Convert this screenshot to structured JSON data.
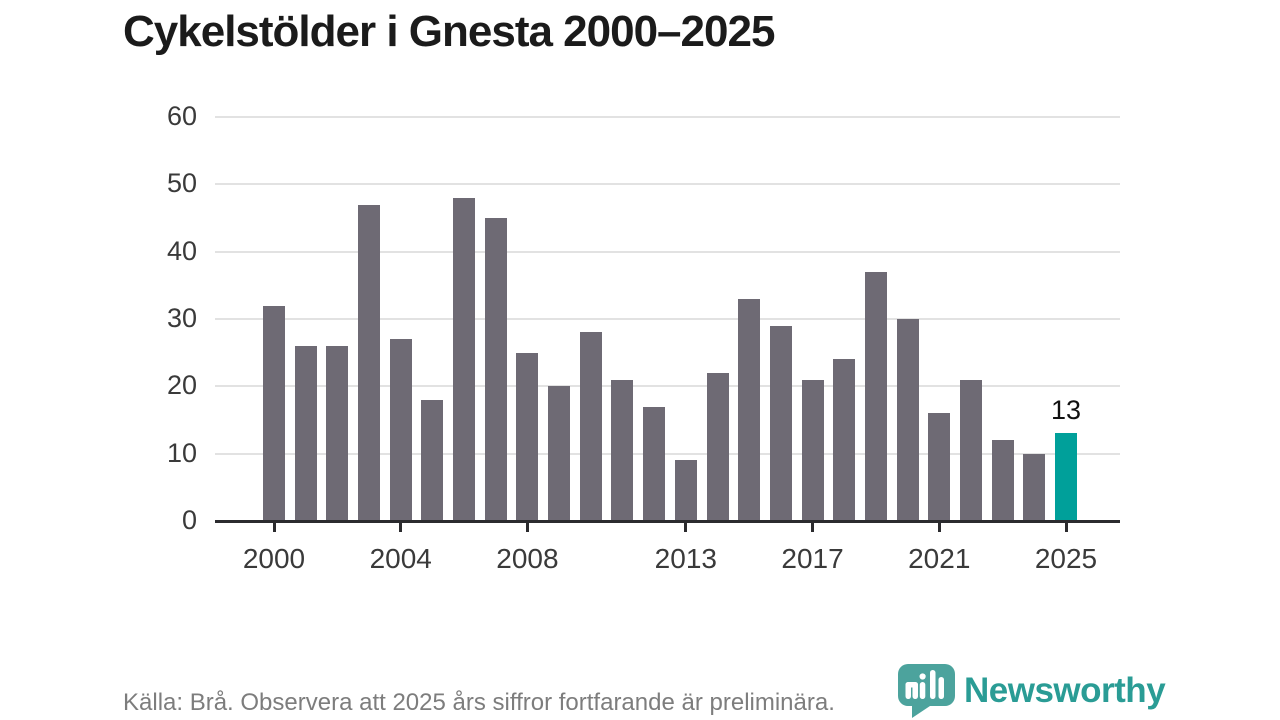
{
  "title": "Cykelstölder i Gnesta 2000–2025",
  "footer": {
    "source_note": "Källa: Brå. Observera att 2025 års siffror fortfarande är preliminära."
  },
  "logo": {
    "wordmark": "Newsworthy"
  },
  "colors": {
    "bar": "#6e6a74",
    "highlight_bar": "#00a09a",
    "logo_icon": "#3f9d96",
    "logo_text": "#2a9c95",
    "gridline": "#e2e2e2",
    "axis": "#2b2b2e",
    "axis_label": "#3a3a3a",
    "title_text": "#1b1b1b",
    "footer_text": "#7d7d7d",
    "bar_label": "#111111"
  },
  "chart_data": {
    "type": "bar",
    "title": "Cykelstölder i Gnesta 2000–2025",
    "x": [
      2000,
      2001,
      2002,
      2003,
      2004,
      2005,
      2006,
      2007,
      2008,
      2009,
      2010,
      2011,
      2012,
      2013,
      2014,
      2015,
      2016,
      2017,
      2018,
      2019,
      2020,
      2021,
      2022,
      2023,
      2024,
      2025
    ],
    "values": [
      32,
      26,
      26,
      47,
      27,
      18,
      48,
      45,
      25,
      20,
      28,
      21,
      17,
      9,
      22,
      33,
      29,
      21,
      24,
      37,
      30,
      16,
      21,
      12,
      10,
      13
    ],
    "highlight_index": 25,
    "highlight_label": "13",
    "xtick_labels": [
      2000,
      2004,
      2008,
      2013,
      2017,
      2021,
      2025
    ],
    "ytick_labels": [
      0,
      10,
      20,
      30,
      40,
      50,
      60
    ],
    "ylim": [
      0,
      60
    ],
    "xlabel": "",
    "ylabel": "",
    "grid": true,
    "legend": "none"
  }
}
